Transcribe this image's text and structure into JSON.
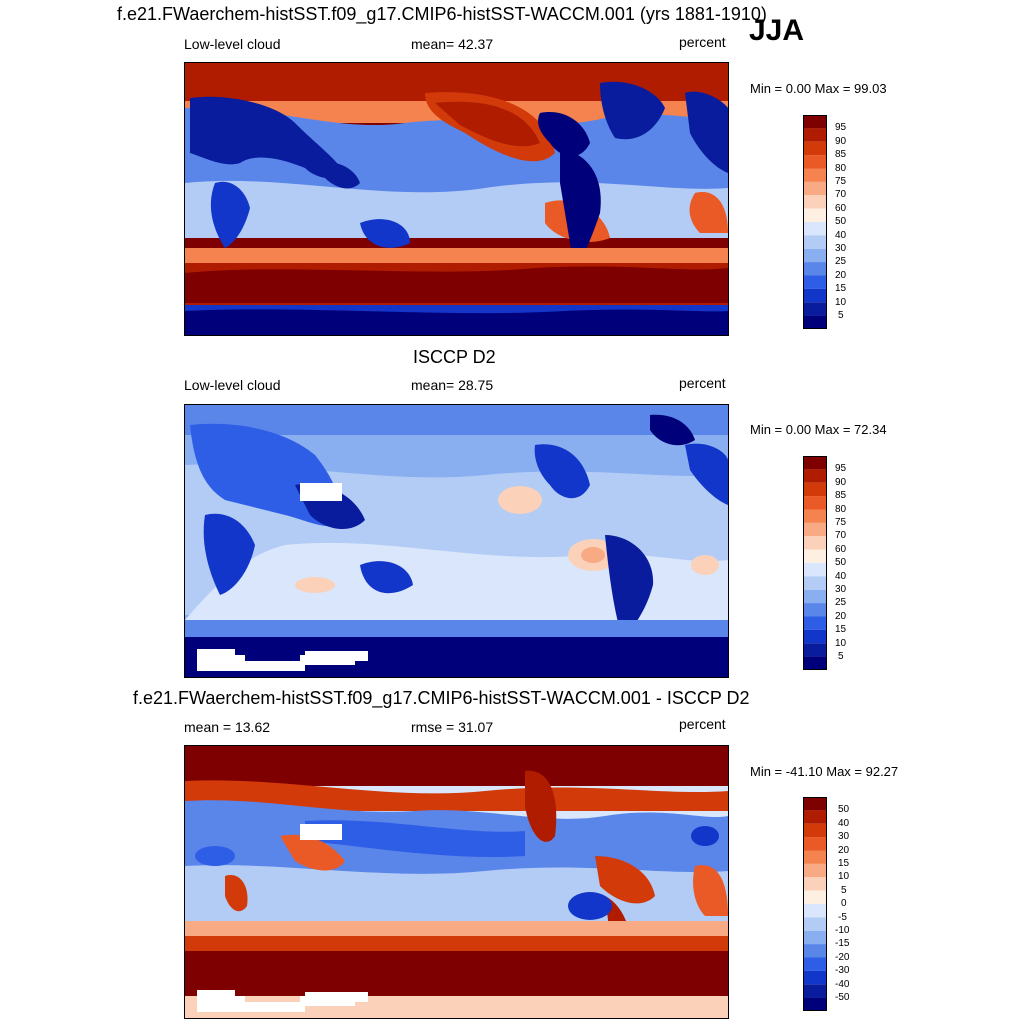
{
  "season": "JJA",
  "panels": [
    {
      "title": "f.e21.FWaerchem-histSST.f09_g17.CMIP6-histSST-WACCM.001 (yrs 1881-1910)",
      "left_label": "Low-level cloud",
      "center_label": "mean=  42.37",
      "right_label": "percent",
      "minmax": "Min =   0.00 Max =  99.03",
      "colorbar": [
        "95",
        "90",
        "85",
        "80",
        "75",
        "70",
        "60",
        "50",
        "40",
        "30",
        "25",
        "20",
        "15",
        "10",
        "5"
      ]
    },
    {
      "title": "ISCCP D2",
      "left_label": "Low-level cloud",
      "center_label": "mean=  28.75",
      "right_label": "percent",
      "minmax": "Min =   0.00 Max =  72.34",
      "colorbar": [
        "95",
        "90",
        "85",
        "80",
        "75",
        "70",
        "60",
        "50",
        "40",
        "30",
        "25",
        "20",
        "15",
        "10",
        "5"
      ]
    },
    {
      "title": "f.e21.FWaerchem-histSST.f09_g17.CMIP6-histSST-WACCM.001 - ISCCP D2",
      "left_label": "mean =  13.62",
      "center_label": "rmse =  31.07",
      "right_label": "percent",
      "minmax": "Min = -41.10 Max =  92.27",
      "colorbar": [
        "50",
        "40",
        "30",
        "20",
        "15",
        "10",
        "5",
        "0",
        "-5",
        "-10",
        "-15",
        "-20",
        "-30",
        "-40",
        "-50"
      ]
    }
  ],
  "colors": {
    "scale": [
      "#7f0000",
      "#b01c00",
      "#d23a0a",
      "#ea5a26",
      "#f4834f",
      "#f8aa85",
      "#fbd2b9",
      "#fdf0e2",
      "#d9e6fb",
      "#b3ccf5",
      "#8aaff0",
      "#5a86ea",
      "#2f5ee6",
      "#1236c9",
      "#0a1c9e",
      "#00007a"
    ]
  }
}
